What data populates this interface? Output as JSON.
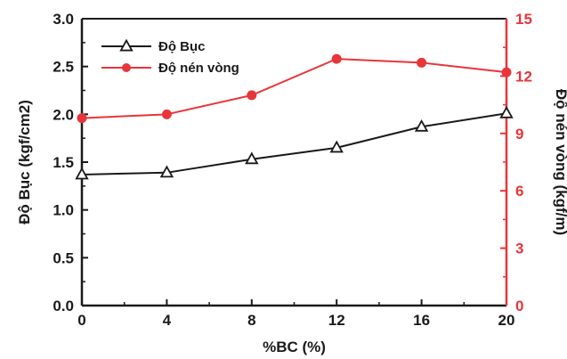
{
  "chart_data": {
    "type": "line",
    "x": [
      0,
      4,
      8,
      12,
      16,
      20
    ],
    "xlabel": "%BC (%)",
    "xlim": [
      0,
      20
    ],
    "xticks": [
      0,
      4,
      8,
      12,
      16,
      20
    ],
    "ylabel": "Độ Bục (kgf/cm2)",
    "ylim": [
      0.0,
      3.0
    ],
    "yticks": [
      "0.0",
      "0.5",
      "1.0",
      "1.5",
      "2.0",
      "2.5",
      "3.0"
    ],
    "y2label": "Độ nén vòng (kgf/m)",
    "y2lim": [
      0,
      15
    ],
    "y2ticks": [
      "0",
      "3",
      "6",
      "9",
      "12",
      "15"
    ],
    "grid": false,
    "legend_position": "top-left",
    "series": [
      {
        "name": "Độ Bục",
        "axis": "left",
        "marker": "open-triangle",
        "color": "#1a1a1a",
        "values": [
          1.37,
          1.39,
          1.53,
          1.65,
          1.87,
          2.01
        ]
      },
      {
        "name": "Độ nén vòng",
        "axis": "right",
        "marker": "filled-circle",
        "color": "#e8353a",
        "values": [
          9.8,
          10.0,
          11.0,
          12.9,
          12.7,
          12.2
        ]
      }
    ],
    "colors": {
      "left_axis": "#1a1a1a",
      "right_axis": "#e8353a"
    }
  }
}
